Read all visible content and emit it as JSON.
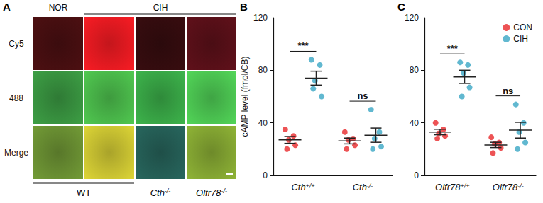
{
  "panel_a": {
    "label": "A",
    "headers": [
      "NOR",
      "CIH"
    ],
    "rows": [
      "Cy5",
      "488",
      "Merge"
    ],
    "footers": [
      "WT",
      "Cth-/-",
      "Olfr78-/-"
    ]
  },
  "chart_data": [
    {
      "type": "scatter",
      "panel": "B",
      "ylabel": "cAMP level (fmol/CB)",
      "categories": [
        "Cth+/+",
        "Cth-/-"
      ],
      "series": [
        {
          "name": "CON",
          "color": "#e8282b",
          "marker": "circle",
          "values": [
            [
              35,
              30,
              27,
              23,
              20
            ],
            [
              33,
              28,
              27,
              23,
              20
            ]
          ],
          "means": [
            27,
            26.2
          ],
          "errors": [
            2.6,
            2.2
          ]
        },
        {
          "name": "CIH",
          "color": "#3aa6c4",
          "marker": "circle",
          "values": [
            [
              88,
              84,
              72,
              60,
              66
            ],
            [
              50,
              33,
              28,
              22,
              20
            ]
          ],
          "means": [
            74,
            30.6
          ],
          "errors": [
            5.3,
            5.4
          ]
        }
      ],
      "annotations": [
        {
          "text": "***",
          "category": 0
        },
        {
          "text": "ns",
          "category": 1
        }
      ],
      "ylim": [
        0,
        120
      ],
      "yticks": [
        0,
        40,
        80,
        120
      ],
      "grid": false
    },
    {
      "type": "scatter",
      "panel": "C",
      "categories": [
        "Olfr78+/+",
        "Olfr78-/-"
      ],
      "series": [
        {
          "name": "CON",
          "color": "#e8282b",
          "marker": "circle",
          "values": [
            [
              40,
              35,
              32,
              30,
              28
            ],
            [
              29,
              25,
              24,
              21,
              17
            ]
          ],
          "means": [
            33,
            23.2
          ],
          "errors": [
            2.1,
            2.0
          ]
        },
        {
          "name": "CIH",
          "color": "#3aa6c4",
          "marker": "circle",
          "values": [
            [
              86,
              84,
              78,
              67,
              60
            ],
            [
              54,
              40,
              33,
              25,
              20
            ]
          ],
          "means": [
            75,
            34.4
          ],
          "errors": [
            5,
            6
          ]
        }
      ],
      "annotations": [
        {
          "text": "***",
          "category": 0
        },
        {
          "text": "ns",
          "category": 1
        }
      ],
      "ylim": [
        0,
        120
      ],
      "yticks": [
        0,
        40,
        80,
        120
      ],
      "grid": false,
      "legend": "top-right"
    }
  ]
}
